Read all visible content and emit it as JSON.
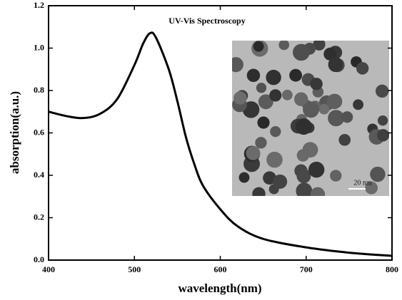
{
  "chart_data": {
    "type": "line",
    "title": "UV-Vis Spectroscopy",
    "x_label": "wavelength(nm)",
    "y_label": "absorption(a.u.)",
    "inset_scale_label": "20 nm",
    "x": [
      400,
      420,
      440,
      460,
      480,
      500,
      510,
      518,
      525,
      540,
      550,
      560,
      570,
      580,
      600,
      620,
      650,
      700,
      750,
      800
    ],
    "values": [
      0.7,
      0.68,
      0.67,
      0.69,
      0.76,
      0.92,
      1.02,
      1.07,
      1.05,
      0.9,
      0.75,
      0.58,
      0.45,
      0.35,
      0.24,
      0.16,
      0.1,
      0.06,
      0.035,
      0.02
    ],
    "color": "#000000",
    "xlim": [
      400,
      800
    ],
    "ylim": [
      0,
      1.2
    ],
    "xticks": [
      400,
      500,
      600,
      700,
      800
    ],
    "yticks": [
      {
        "value": 0,
        "label": "0.0"
      },
      0.2,
      0.4,
      0.6,
      0.8,
      {
        "value": 1,
        "label": "1.0"
      },
      1.2
    ]
  }
}
